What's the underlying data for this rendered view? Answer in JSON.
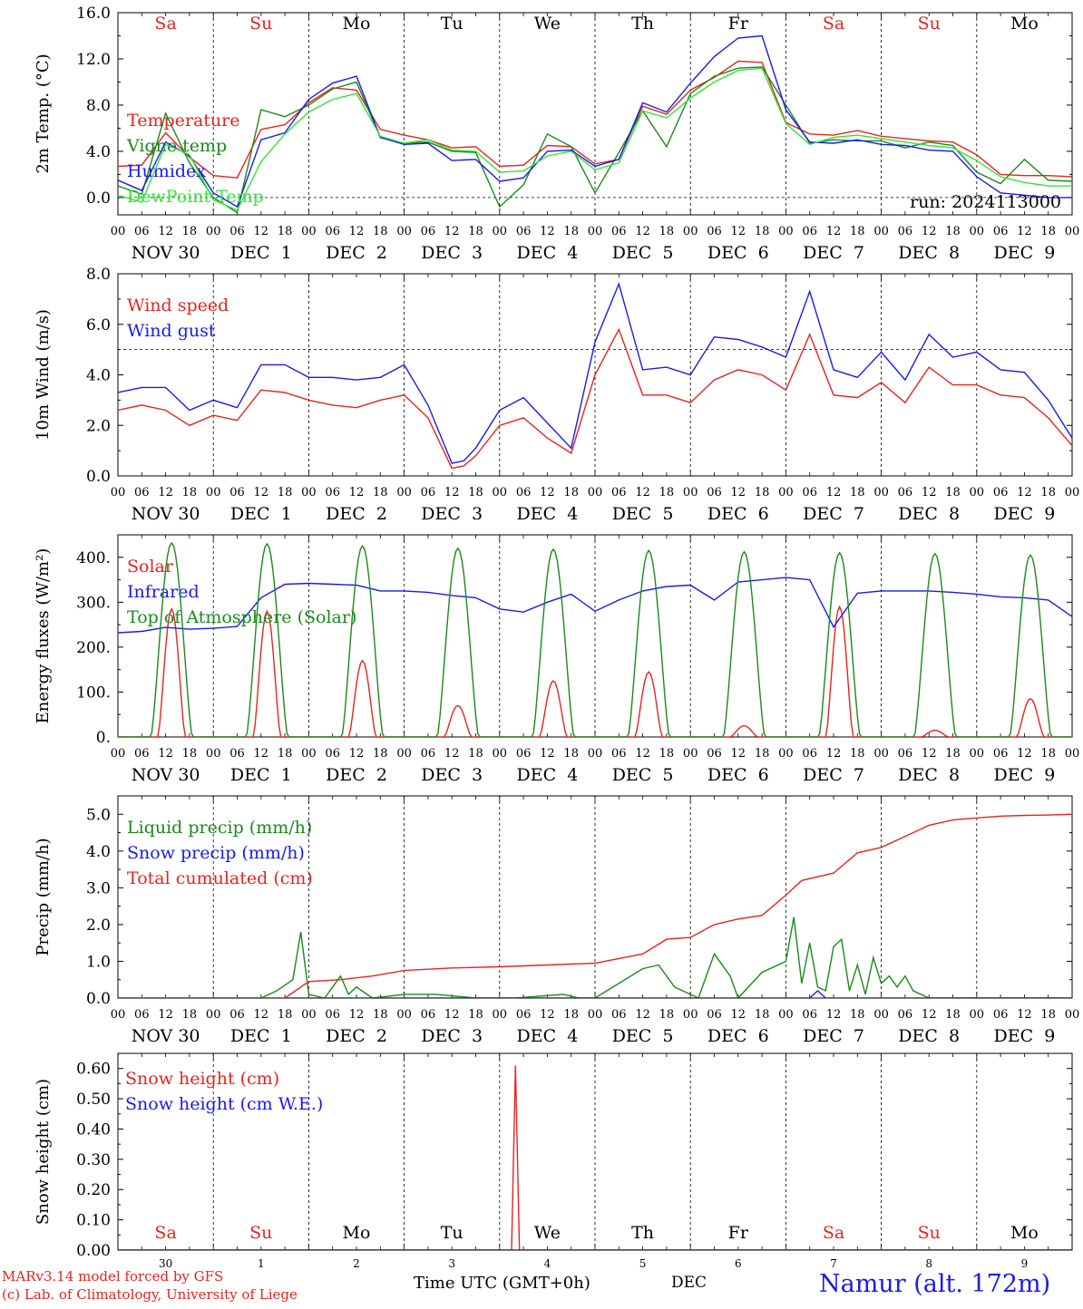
{
  "run_label": "run: 2024113000",
  "footer": {
    "model": "MARv3.14 model forced by GFS",
    "credit": "(c) Lab. of Climatology, University of Liege",
    "time_label": "Time UTC (GMT+0h)",
    "month": "DEC",
    "station": "Namur (alt. 172m)"
  },
  "axis": {
    "hour_labels": [
      "00",
      "06",
      "12",
      "18"
    ],
    "end_hour": "00",
    "date_labels": [
      "NOV 30",
      "DEC  1",
      "DEC  2",
      "DEC  3",
      "DEC  4",
      "DEC  5",
      "DEC  6",
      "DEC  7",
      "DEC  8",
      "DEC  9"
    ],
    "day_names": [
      "Sa",
      "Su",
      "Mo",
      "Tu",
      "We",
      "Th",
      "Fr",
      "Sa",
      "Su",
      "Mo"
    ],
    "day_colors": [
      "#e8231e",
      "#e8231e",
      "#000000",
      "#000000",
      "#000000",
      "#000000",
      "#000000",
      "#e8231e",
      "#e8231e",
      "#000000"
    ],
    "day_numbers": [
      "30",
      "1",
      "2",
      "3",
      "4",
      "5",
      "6",
      "7",
      "8",
      "9"
    ]
  },
  "chart_data": [
    {
      "type": "line",
      "id": "temp",
      "ylabel": "2m Temp. (°C)",
      "ylim": [
        -1.5,
        16
      ],
      "yticks": [
        0,
        4,
        8,
        12,
        16
      ],
      "ytick_labels": [
        "0.0",
        "4.0",
        "8.0",
        "12.0",
        "16.0"
      ],
      "refline": 0,
      "x_unit": "hours since NOV 30 00 UTC",
      "series": [
        {
          "name": "Temperature",
          "color": "#e8231e",
          "x": [
            0,
            6,
            12,
            18,
            24,
            30,
            36,
            42,
            48,
            54,
            60,
            66,
            72,
            78,
            84,
            90,
            96,
            102,
            108,
            114,
            120,
            126,
            132,
            138,
            144,
            150,
            156,
            162,
            168,
            174,
            180,
            186,
            192,
            198,
            204,
            210,
            216,
            222,
            228,
            234,
            240
          ],
          "y": [
            2.7,
            2.8,
            5.6,
            3.5,
            1.9,
            1.7,
            5.9,
            6.3,
            8.2,
            9.5,
            9.3,
            5.9,
            5.4,
            5.0,
            4.3,
            4.4,
            2.7,
            2.8,
            4.5,
            4.4,
            2.9,
            3.3,
            7.9,
            7.2,
            9.3,
            10.4,
            11.8,
            11.7,
            6.5,
            5.5,
            5.4,
            5.8,
            5.3,
            5.1,
            4.9,
            4.8,
            3.7,
            2.0,
            1.9,
            1.9,
            1.8
          ]
        },
        {
          "name": "Vigne temp",
          "color": "#1a8a1a",
          "x": [
            0,
            6,
            12,
            18,
            24,
            30,
            36,
            42,
            48,
            54,
            60,
            66,
            72,
            78,
            84,
            90,
            96,
            102,
            108,
            114,
            120,
            126,
            132,
            138,
            144,
            150,
            156,
            162,
            168,
            174,
            180,
            186,
            192,
            198,
            204,
            210,
            216,
            222,
            228,
            234,
            240
          ],
          "y": [
            1.0,
            0.3,
            7.3,
            3.0,
            0.0,
            -1.3,
            7.6,
            7.0,
            8.0,
            9.4,
            10.0,
            5.2,
            4.7,
            4.8,
            4.0,
            3.9,
            -0.8,
            1.1,
            5.5,
            4.4,
            0.4,
            3.9,
            7.5,
            4.4,
            9.0,
            10.5,
            11.2,
            11.3,
            8.0,
            4.7,
            5.0,
            4.9,
            4.9,
            4.3,
            4.8,
            4.5,
            2.2,
            1.2,
            3.3,
            1.5,
            1.4
          ]
        },
        {
          "name": "Humidex",
          "color": "#1a1aee",
          "x": [
            0,
            6,
            12,
            18,
            24,
            30,
            36,
            42,
            48,
            54,
            60,
            66,
            72,
            78,
            84,
            90,
            96,
            102,
            108,
            114,
            120,
            126,
            132,
            138,
            144,
            150,
            156,
            162,
            168,
            174,
            180,
            186,
            192,
            198,
            204,
            210,
            216,
            222,
            228,
            234,
            240
          ],
          "y": [
            1.5,
            0.6,
            4.8,
            3.6,
            0.4,
            -0.8,
            5.0,
            5.6,
            8.5,
            9.9,
            10.5,
            5.2,
            4.6,
            4.7,
            3.2,
            3.3,
            1.4,
            1.7,
            4.0,
            4.1,
            2.7,
            3.3,
            8.2,
            7.4,
            9.9,
            12.2,
            13.8,
            14.0,
            7.6,
            4.8,
            4.7,
            5.0,
            4.6,
            4.5,
            4.1,
            4.0,
            1.8,
            0.4,
            0.2,
            0.0,
            0.0
          ]
        },
        {
          "name": "DewPoint Temp",
          "color": "#33e633",
          "x": [
            0,
            6,
            12,
            18,
            24,
            30,
            36,
            42,
            48,
            54,
            60,
            66,
            72,
            78,
            84,
            90,
            96,
            102,
            108,
            114,
            120,
            126,
            132,
            138,
            144,
            150,
            156,
            162,
            168,
            174,
            180,
            186,
            192,
            198,
            204,
            210,
            216,
            222,
            228,
            234,
            240
          ],
          "y": [
            0.2,
            -0.4,
            4.6,
            3.7,
            -0.2,
            -1.1,
            3.1,
            5.5,
            7.4,
            8.5,
            9.0,
            5.3,
            4.7,
            5.0,
            4.1,
            4.0,
            2.2,
            2.3,
            3.6,
            4.0,
            2.4,
            3.0,
            7.5,
            6.9,
            8.6,
            10.0,
            11.0,
            11.2,
            6.4,
            4.6,
            5.2,
            5.4,
            5.1,
            4.8,
            4.5,
            4.3,
            3.2,
            1.8,
            1.3,
            1.0,
            1.0
          ]
        }
      ]
    },
    {
      "type": "line",
      "id": "wind",
      "ylabel": "10m Wind (m/s)",
      "ylim": [
        0,
        8
      ],
      "yticks": [
        0,
        2,
        4,
        6,
        8
      ],
      "ytick_labels": [
        "0.0",
        "2.0",
        "4.0",
        "6.0",
        "8.0"
      ],
      "refline": 5,
      "series": [
        {
          "name": "Wind speed",
          "color": "#e8231e",
          "x": [
            0,
            6,
            12,
            18,
            24,
            30,
            36,
            42,
            48,
            54,
            60,
            66,
            72,
            78,
            84,
            87,
            90,
            96,
            102,
            108,
            114,
            120,
            126,
            132,
            138,
            144,
            150,
            156,
            162,
            168,
            174,
            180,
            186,
            192,
            198,
            204,
            210,
            216,
            222,
            228,
            234,
            240
          ],
          "y": [
            2.6,
            2.8,
            2.6,
            2.0,
            2.4,
            2.2,
            3.4,
            3.3,
            3.0,
            2.8,
            2.7,
            3.0,
            3.2,
            2.3,
            0.3,
            0.4,
            0.8,
            2.0,
            2.3,
            1.5,
            0.9,
            4.0,
            5.8,
            3.2,
            3.2,
            2.9,
            3.8,
            4.2,
            4.0,
            3.4,
            5.6,
            3.2,
            3.1,
            3.7,
            2.9,
            4.3,
            3.6,
            3.6,
            3.2,
            3.1,
            2.3,
            1.2
          ]
        },
        {
          "name": "Wind gust",
          "color": "#1a1aee",
          "x": [
            0,
            6,
            12,
            18,
            24,
            30,
            36,
            42,
            48,
            54,
            60,
            66,
            72,
            78,
            84,
            87,
            90,
            96,
            102,
            108,
            114,
            120,
            126,
            132,
            138,
            144,
            150,
            156,
            162,
            168,
            174,
            180,
            186,
            192,
            198,
            204,
            210,
            216,
            222,
            228,
            234,
            240
          ],
          "y": [
            3.3,
            3.5,
            3.5,
            2.6,
            3.0,
            2.7,
            4.4,
            4.4,
            3.9,
            3.9,
            3.8,
            3.9,
            4.4,
            2.8,
            0.5,
            0.6,
            1.1,
            2.6,
            3.1,
            2.1,
            1.1,
            5.3,
            7.6,
            4.2,
            4.3,
            4.0,
            5.5,
            5.4,
            5.1,
            4.7,
            7.3,
            4.2,
            3.9,
            4.9,
            3.8,
            5.6,
            4.7,
            4.9,
            4.2,
            4.1,
            3.0,
            1.5
          ]
        }
      ]
    },
    {
      "type": "line",
      "id": "energy",
      "ylabel": "Energy fluxes (W/m²)",
      "ylim": [
        0,
        450
      ],
      "yticks": [
        0,
        100,
        200,
        300,
        400
      ],
      "ytick_labels": [
        "0.",
        "100.",
        "200.",
        "300.",
        "400."
      ],
      "series": [
        {
          "name": "Solar",
          "color": "#e8231e",
          "peaks": [
            285,
            280,
            170,
            70,
            125,
            145,
            25,
            290,
            15,
            85
          ]
        },
        {
          "name": "Infrared",
          "color": "#1a1aee",
          "x": [
            0,
            6,
            12,
            18,
            24,
            30,
            36,
            42,
            48,
            54,
            60,
            66,
            72,
            78,
            84,
            90,
            96,
            102,
            108,
            114,
            120,
            126,
            132,
            138,
            144,
            150,
            156,
            162,
            168,
            174,
            180,
            186,
            192,
            198,
            204,
            210,
            216,
            222,
            228,
            234,
            240
          ],
          "y": [
            232,
            235,
            244,
            240,
            242,
            246,
            310,
            340,
            342,
            340,
            338,
            325,
            325,
            322,
            315,
            310,
            285,
            278,
            300,
            318,
            280,
            305,
            325,
            335,
            338,
            305,
            345,
            350,
            355,
            350,
            245,
            320,
            325,
            325,
            325,
            322,
            318,
            312,
            310,
            305,
            268
          ]
        },
        {
          "name": "Top of Atmosphere (Solar)",
          "color": "#1a8a1a",
          "peaks": [
            432,
            430,
            425,
            420,
            418,
            415,
            412,
            410,
            408,
            405
          ]
        }
      ]
    },
    {
      "type": "line",
      "id": "precip",
      "ylabel": "Precip (mm/h)",
      "ylim": [
        0,
        5.5
      ],
      "yticks": [
        0,
        1,
        2,
        3,
        4,
        5
      ],
      "ytick_labels": [
        "0.0",
        "1.0",
        "2.0",
        "3.0",
        "4.0",
        "5.0"
      ],
      "series": [
        {
          "name": "Liquid precip (mm/h)",
          "color": "#1a8a1a",
          "x": [
            0,
            36,
            40,
            44,
            46,
            48,
            52,
            56,
            58,
            60,
            64,
            72,
            80,
            90,
            100,
            112,
            116,
            120,
            132,
            136,
            140,
            146,
            150,
            154,
            156,
            162,
            168,
            170,
            172,
            174,
            176,
            178,
            180,
            182,
            184,
            186,
            188,
            190,
            192,
            194,
            196,
            198,
            200,
            204,
            208,
            216,
            240
          ],
          "y": [
            0,
            0,
            0.2,
            0.5,
            1.8,
            0.1,
            0,
            0.6,
            0.1,
            0.3,
            0,
            0.1,
            0.1,
            0,
            0,
            0.1,
            0,
            0,
            0.8,
            0.9,
            0.3,
            0,
            1.2,
            0.6,
            0,
            0.7,
            1.0,
            2.2,
            0.4,
            1.5,
            0.3,
            0.2,
            1.4,
            1.6,
            0.2,
            0.9,
            0.1,
            1.1,
            0.4,
            0.6,
            0.3,
            0.6,
            0.2,
            0,
            0,
            0,
            0
          ]
        },
        {
          "name": "Snow precip (mm/h)",
          "color": "#1a1aee",
          "x": [
            0,
            120,
            174,
            176,
            178,
            190,
            240
          ],
          "y": [
            0,
            0,
            0,
            0.2,
            0,
            0,
            0
          ]
        },
        {
          "name": "Total cumulated (cm)",
          "color": "#e8231e",
          "x": [
            0,
            42,
            48,
            56,
            64,
            72,
            84,
            96,
            108,
            120,
            132,
            138,
            144,
            150,
            156,
            162,
            168,
            172,
            176,
            180,
            186,
            192,
            198,
            204,
            210,
            216,
            222,
            228,
            234,
            240
          ],
          "y": [
            0,
            0,
            0.45,
            0.5,
            0.6,
            0.75,
            0.82,
            0.85,
            0.9,
            0.95,
            1.2,
            1.6,
            1.65,
            2.0,
            2.15,
            2.25,
            2.8,
            3.2,
            3.3,
            3.4,
            3.95,
            4.1,
            4.4,
            4.7,
            4.85,
            4.9,
            4.95,
            4.97,
            4.98,
            5.0
          ]
        }
      ]
    },
    {
      "type": "line",
      "id": "snow",
      "ylabel": "Snow height (cm)",
      "ylim": [
        0,
        0.65
      ],
      "yticks": [
        0,
        0.1,
        0.2,
        0.3,
        0.4,
        0.5,
        0.6
      ],
      "ytick_labels": [
        "0.00",
        "0.10",
        "0.20",
        "0.30",
        "0.40",
        "0.50",
        "0.60"
      ],
      "series": [
        {
          "name": "Snow height (cm)",
          "color": "#e8231e",
          "x": [
            0,
            99,
            100,
            101,
            240
          ],
          "y": [
            0,
            0,
            0.61,
            0,
            0
          ]
        },
        {
          "name": "Snow height (cm W.E.)",
          "color": "#1a1aee",
          "x": [
            0,
            240
          ],
          "y": [
            0,
            0
          ]
        }
      ]
    }
  ]
}
